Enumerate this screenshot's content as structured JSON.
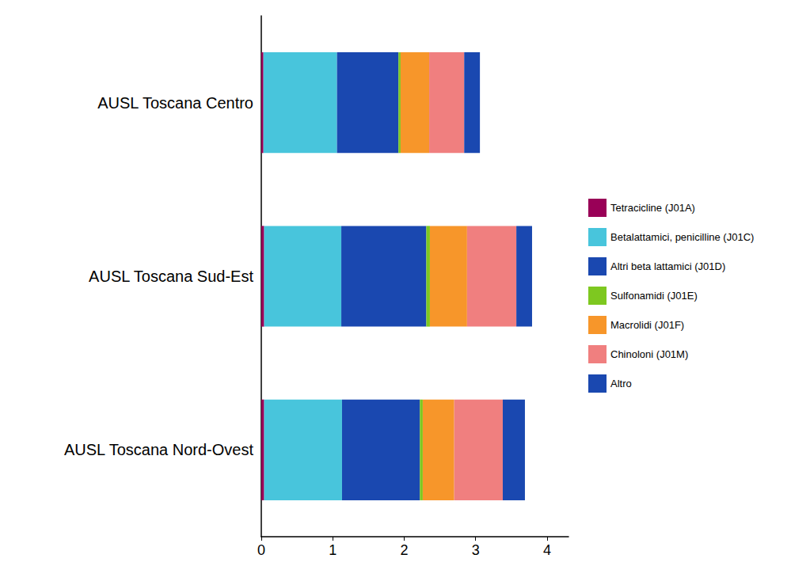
{
  "chart_data": {
    "type": "bar",
    "orientation": "horizontal",
    "stacked": true,
    "grid": false,
    "legend": "right",
    "categories": [
      "AUSL Toscana Centro",
      "AUSL Toscana Sud-Est",
      "AUSL Toscana Nord-Ovest"
    ],
    "series": [
      {
        "name": "Tetracicline (J01A)",
        "color": "#990057",
        "values": [
          0.03,
          0.04,
          0.04
        ]
      },
      {
        "name": "Betalattamici, penicilline (J01C)",
        "color": "#48c5dc",
        "values": [
          1.03,
          1.08,
          1.09
        ]
      },
      {
        "name": "Altri beta lattamici (J01D)",
        "color": "#1a48b0",
        "values": [
          0.86,
          1.19,
          1.09
        ]
      },
      {
        "name": "Sulfonamidi (J01E)",
        "color": "#7ec820",
        "values": [
          0.03,
          0.05,
          0.04
        ]
      },
      {
        "name": "Macrolidi (J01F)",
        "color": "#f7962a",
        "values": [
          0.4,
          0.52,
          0.44
        ]
      },
      {
        "name": "Chinoloni (J01M)",
        "color": "#f07f7f",
        "values": [
          0.49,
          0.69,
          0.68
        ]
      },
      {
        "name": "Altro",
        "color": "#1a48b0",
        "values": [
          0.22,
          0.22,
          0.31
        ]
      }
    ],
    "xlim": [
      0,
      4.3
    ],
    "xticks": [
      0,
      1,
      2,
      3,
      4
    ]
  }
}
